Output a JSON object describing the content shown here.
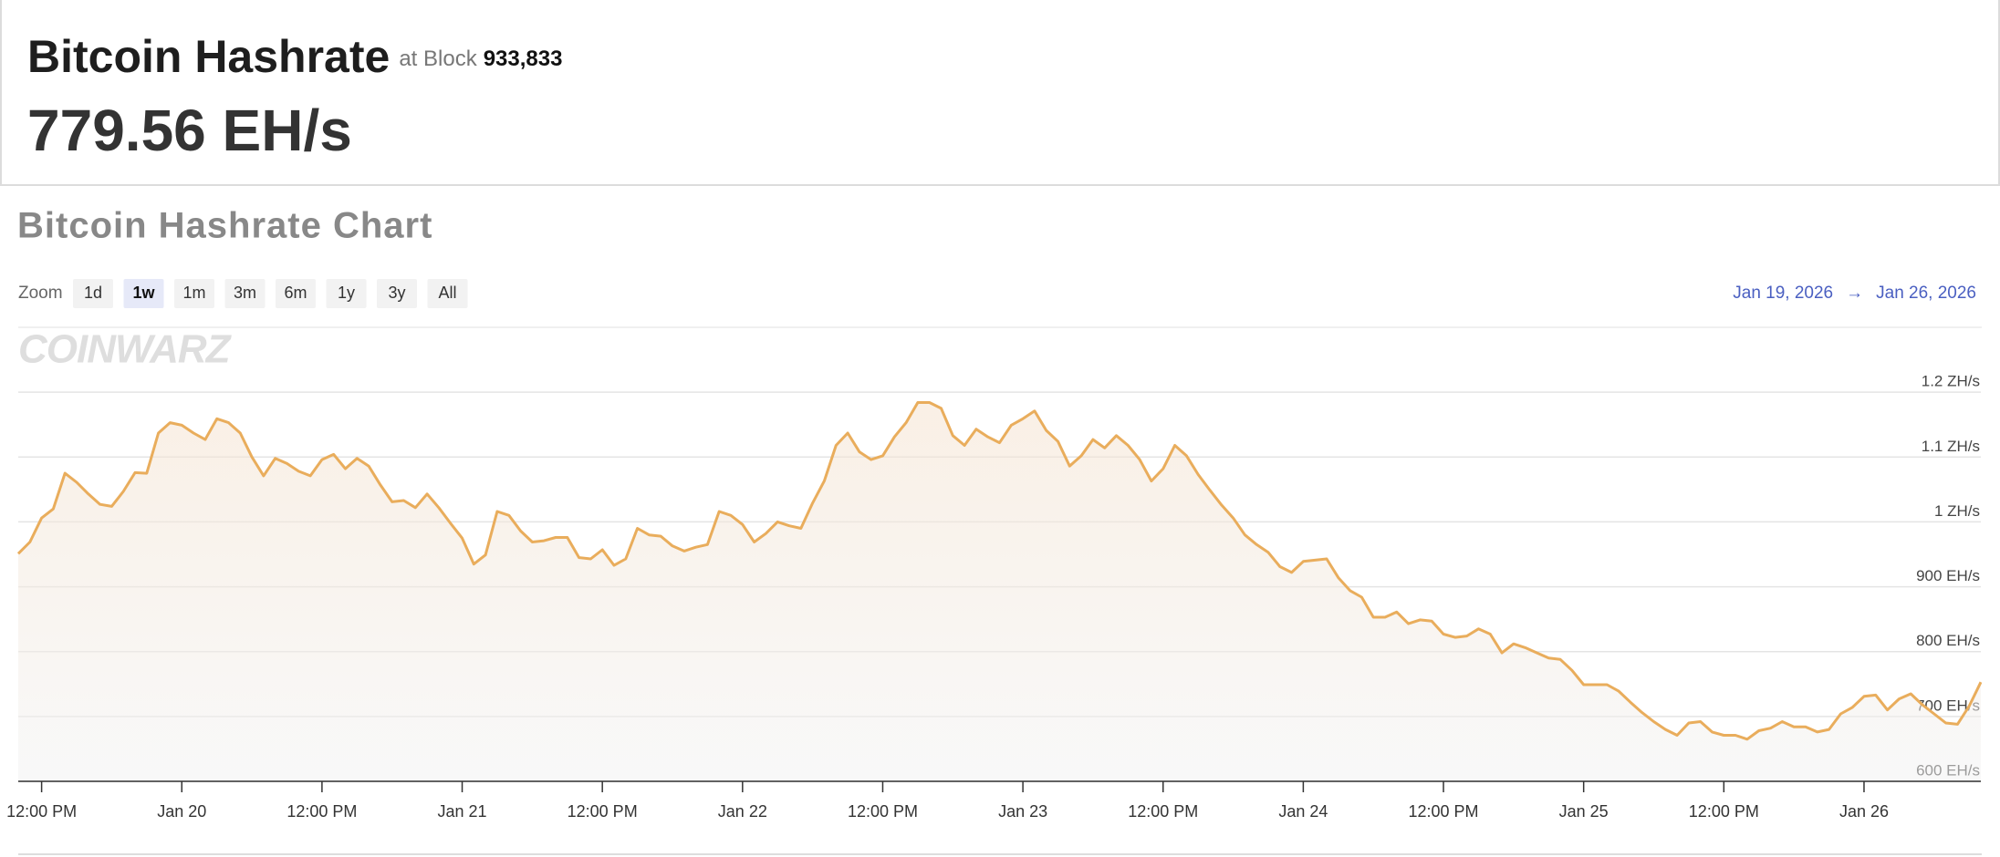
{
  "header": {
    "title": "Bitcoin Hashrate",
    "block_prefix": "at Block",
    "block": "933,833",
    "hashrate": "779.56 EH/s"
  },
  "chart_data": {
    "type": "line",
    "title": "Bitcoin Hashrate Chart",
    "watermark": "COINWARZ",
    "zoom_label": "Zoom",
    "zoom_options": [
      "1d",
      "1w",
      "1m",
      "3m",
      "6m",
      "1y",
      "3y",
      "All"
    ],
    "zoom_selected": "1w",
    "range_start": "Jan 19, 2026",
    "range_arrow": "→",
    "range_end": "Jan 26, 2026",
    "series": [
      {
        "name": "Hashrate",
        "color": "#e9ad5c",
        "x": [
          10,
          11,
          12,
          13,
          14,
          15,
          16,
          17,
          18,
          19,
          20,
          21,
          22,
          23,
          24,
          25,
          26,
          27,
          28,
          29,
          30,
          31,
          32,
          33,
          34,
          35,
          36,
          37,
          38,
          39,
          40,
          41,
          42,
          43,
          44,
          45,
          46,
          47,
          48,
          49,
          50,
          51,
          52,
          53,
          54,
          55,
          56,
          57,
          58,
          59,
          60,
          61,
          62,
          63,
          64,
          65,
          66,
          67,
          68,
          69,
          70,
          71,
          72,
          73,
          74,
          75,
          76,
          77,
          78,
          79,
          80,
          81,
          82,
          83,
          84,
          85,
          86,
          87,
          88,
          89,
          90,
          91,
          92,
          93,
          94,
          95,
          96,
          97,
          98,
          99,
          100,
          101,
          102,
          103,
          104,
          105,
          106,
          107,
          108,
          109,
          110,
          111,
          112,
          113,
          114,
          115,
          116,
          117,
          118,
          119,
          120,
          121,
          122,
          123,
          124,
          125,
          126,
          127,
          128,
          129,
          130,
          131,
          132,
          133,
          134,
          135,
          136,
          137,
          138,
          139,
          140,
          141,
          142,
          143,
          144,
          145,
          146,
          147,
          148,
          149,
          150,
          151,
          152,
          153,
          154,
          155,
          156,
          157,
          158,
          159,
          160,
          161,
          162,
          163,
          164,
          165,
          166,
          167,
          168,
          169,
          170,
          171,
          172,
          173,
          174,
          175,
          176,
          177,
          178
        ],
        "values": [
          951,
          969,
          1006,
          1020,
          1075,
          1061,
          1043,
          1027,
          1024,
          1047,
          1076,
          1075,
          1137,
          1153,
          1149,
          1137,
          1127,
          1159,
          1153,
          1137,
          1100,
          1071,
          1098,
          1090,
          1078,
          1071,
          1096,
          1104,
          1082,
          1098,
          1086,
          1057,
          1031,
          1033,
          1022,
          1043,
          1022,
          998,
          975,
          935,
          949,
          1016,
          1010,
          986,
          969,
          971,
          976,
          976,
          945,
          943,
          957,
          933,
          943,
          990,
          980,
          978,
          963,
          955,
          961,
          965,
          1016,
          1010,
          996,
          969,
          982,
          1000,
          994,
          990,
          1029,
          1063,
          1118,
          1137,
          1108,
          1096,
          1102,
          1131,
          1153,
          1184,
          1184,
          1175,
          1133,
          1118,
          1143,
          1131,
          1122,
          1149,
          1159,
          1171,
          1141,
          1124,
          1086,
          1102,
          1127,
          1114,
          1133,
          1118,
          1096,
          1063,
          1082,
          1118,
          1102,
          1073,
          1049,
          1026,
          1006,
          980,
          965,
          953,
          931,
          922,
          939,
          941,
          943,
          914,
          894,
          884,
          853,
          853,
          861,
          843,
          849,
          847,
          827,
          822,
          824,
          835,
          827,
          798,
          812,
          806,
          798,
          790,
          788,
          771,
          749,
          749,
          749,
          739,
          722,
          706,
          692,
          680,
          671,
          690,
          692,
          676,
          671,
          671,
          665,
          678,
          682,
          692,
          684,
          684,
          676,
          680,
          704,
          714,
          731,
          733,
          710,
          727,
          735,
          718,
          704,
          690,
          688,
          716,
          753
        ]
      }
    ],
    "xlim": [
      10,
      178
    ],
    "ylim": [
      600,
      1300
    ],
    "xticks": [
      {
        "value": 12,
        "label": "12:00 PM"
      },
      {
        "value": 24,
        "label": "Jan 20"
      },
      {
        "value": 36,
        "label": "12:00 PM"
      },
      {
        "value": 48,
        "label": "Jan 21"
      },
      {
        "value": 60,
        "label": "12:00 PM"
      },
      {
        "value": 72,
        "label": "Jan 22"
      },
      {
        "value": 84,
        "label": "12:00 PM"
      },
      {
        "value": 96,
        "label": "Jan 23"
      },
      {
        "value": 108,
        "label": "12:00 PM"
      },
      {
        "value": 120,
        "label": "Jan 24"
      },
      {
        "value": 132,
        "label": "12:00 PM"
      },
      {
        "value": 144,
        "label": "Jan 25"
      },
      {
        "value": 156,
        "label": "12:00 PM"
      },
      {
        "value": 168,
        "label": "Jan 26"
      }
    ],
    "yticks": [
      {
        "value": 600,
        "label": "600 EH/s"
      },
      {
        "value": 700,
        "label": "700 EH/s"
      },
      {
        "value": 800,
        "label": "800 EH/s"
      },
      {
        "value": 900,
        "label": "900 EH/s"
      },
      {
        "value": 1000,
        "label": "1 ZH/s"
      },
      {
        "value": 1100,
        "label": "1.1 ZH/s"
      },
      {
        "value": 1200,
        "label": "1.2 ZH/s"
      }
    ],
    "grid": true
  }
}
